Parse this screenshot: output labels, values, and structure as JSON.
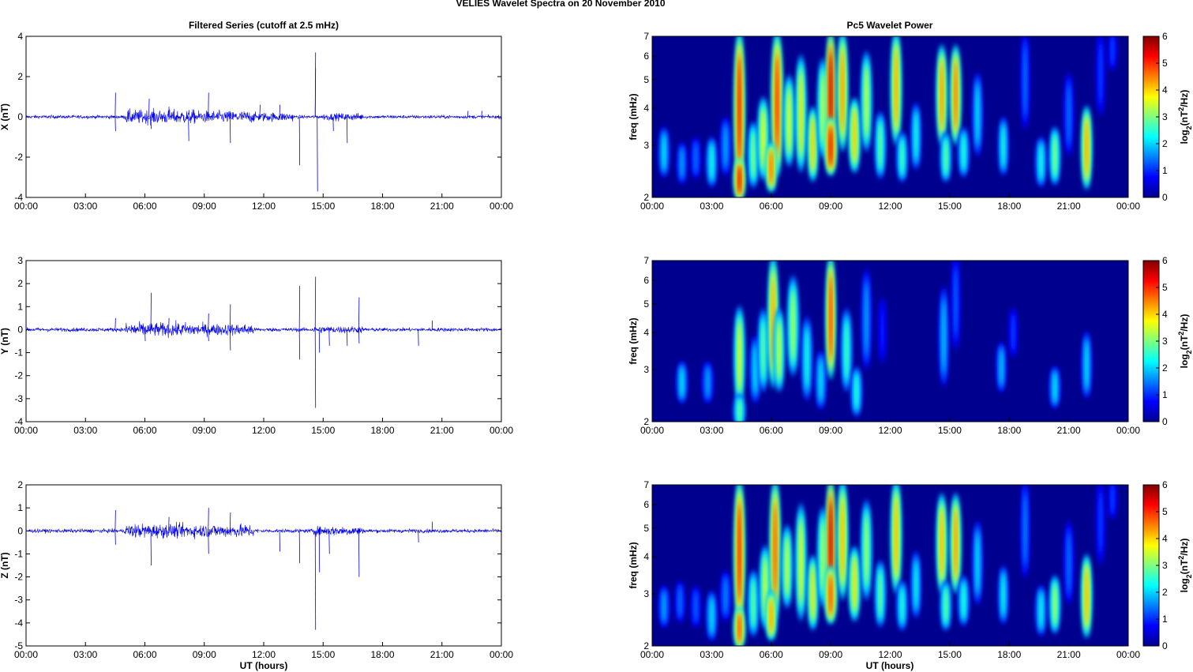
{
  "figure": {
    "suptitle": "VELIES Wavelet Spectra on 20 November  2010",
    "left_title": "Filtered Series (cutoff at 2.5 mHz)",
    "right_title": "Pc5 Wavelet Power",
    "xlabel": "UT (hours)",
    "xticks": [
      "00:00",
      "03:00",
      "06:00",
      "09:00",
      "12:00",
      "15:00",
      "18:00",
      "21:00",
      "00:00"
    ],
    "colors": {
      "trace": "#0000ee",
      "background": "#00008f"
    }
  },
  "chart_data": [
    {
      "type": "line",
      "component": "X",
      "ylabel": "X (nT)",
      "ylim": [
        -4,
        4
      ],
      "yticks": [
        "-4",
        "-2",
        "0",
        "2",
        "4"
      ],
      "x_range_hours": [
        0,
        24
      ],
      "baseline_amplitude": 0.08,
      "spikes": [
        [
          4.5,
          1.2
        ],
        [
          4.5,
          -0.7
        ],
        [
          6.2,
          0.9
        ],
        [
          6.3,
          -0.6
        ],
        [
          7.2,
          0.5
        ],
        [
          8.2,
          -1.2
        ],
        [
          9.2,
          1.2
        ],
        [
          10.3,
          -1.3
        ],
        [
          11.8,
          0.6
        ],
        [
          12.8,
          0.6
        ],
        [
          13.8,
          -2.4
        ],
        [
          14.6,
          3.2
        ],
        [
          14.6,
          2.4
        ],
        [
          14.7,
          -3.7
        ],
        [
          15.5,
          -0.7
        ],
        [
          16.2,
          -1.3
        ],
        [
          22.3,
          0.3
        ],
        [
          23.0,
          0.3
        ]
      ],
      "active_intervals": [
        [
          5.0,
          8.5,
          0.35
        ],
        [
          8.5,
          11.5,
          0.3
        ],
        [
          11.5,
          13.5,
          0.22
        ],
        [
          15,
          17,
          0.18
        ]
      ]
    },
    {
      "type": "line",
      "component": "Y",
      "ylabel": "Y (nT)",
      "ylim": [
        -4,
        3
      ],
      "yticks": [
        "-4",
        "-3",
        "-2",
        "-1",
        "0",
        "1",
        "2",
        "3"
      ],
      "x_range_hours": [
        0,
        24
      ],
      "baseline_amplitude": 0.08,
      "spikes": [
        [
          4.5,
          0.5
        ],
        [
          6.3,
          1.6
        ],
        [
          6.0,
          -0.5
        ],
        [
          7.2,
          0.5
        ],
        [
          9.2,
          0.7
        ],
        [
          9.2,
          -0.5
        ],
        [
          10.3,
          1.1
        ],
        [
          10.3,
          -0.9
        ],
        [
          13.8,
          1.9
        ],
        [
          13.8,
          -1.3
        ],
        [
          14.6,
          2.3
        ],
        [
          14.6,
          -3.4
        ],
        [
          14.8,
          -1.0
        ],
        [
          15.3,
          -0.7
        ],
        [
          16.2,
          -0.7
        ],
        [
          16.8,
          1.4
        ],
        [
          16.8,
          -0.6
        ],
        [
          19.8,
          -0.7
        ],
        [
          20.5,
          0.4
        ]
      ],
      "active_intervals": [
        [
          5.0,
          8.5,
          0.3
        ],
        [
          8.5,
          11.5,
          0.25
        ],
        [
          14.5,
          17,
          0.15
        ]
      ]
    },
    {
      "type": "line",
      "component": "Z",
      "ylabel": "Z (nT)",
      "ylim": [
        -5,
        2
      ],
      "yticks": [
        "-5",
        "-4",
        "-3",
        "-2",
        "-1",
        "0",
        "1",
        "2"
      ],
      "x_range_hours": [
        0,
        24
      ],
      "baseline_amplitude": 0.08,
      "spikes": [
        [
          4.5,
          0.9
        ],
        [
          4.5,
          -0.6
        ],
        [
          6.3,
          -1.5
        ],
        [
          7.2,
          0.6
        ],
        [
          9.2,
          1.0
        ],
        [
          9.2,
          -1.0
        ],
        [
          10.3,
          0.8
        ],
        [
          12.8,
          -0.9
        ],
        [
          13.8,
          -1.4
        ],
        [
          14.6,
          -4.3
        ],
        [
          14.8,
          -1.8
        ],
        [
          15.3,
          -1.0
        ],
        [
          16.8,
          -2.0
        ],
        [
          20.5,
          0.4
        ],
        [
          19.8,
          -0.5
        ]
      ],
      "active_intervals": [
        [
          5.0,
          8.5,
          0.3
        ],
        [
          8.5,
          11.5,
          0.28
        ],
        [
          14.5,
          17,
          0.2
        ]
      ]
    },
    {
      "type": "heatmap",
      "component": "X",
      "ylabel": "freq (mHz)",
      "y_scale": "log",
      "ylim": [
        2,
        7
      ],
      "yticks": [
        "2",
        "3",
        "4",
        "5",
        "6",
        "7"
      ],
      "colorbar": {
        "label": "log2(nT^2/Hz)",
        "range": [
          0,
          6
        ],
        "ticks": [
          "0",
          "1",
          "2",
          "3",
          "4",
          "5",
          "6"
        ]
      },
      "blobs": [
        [
          0.6,
          2.7,
          0.3,
          0.6,
          2.2
        ],
        [
          1.5,
          2.5,
          0.25,
          0.5,
          1.8
        ],
        [
          2.2,
          2.6,
          0.25,
          0.5,
          1.5
        ],
        [
          3.0,
          2.5,
          0.3,
          0.6,
          2.5
        ],
        [
          3.7,
          2.8,
          0.3,
          0.7,
          1.8
        ],
        [
          4.4,
          3.5,
          0.3,
          2.0,
          5.5
        ],
        [
          4.4,
          2.2,
          0.35,
          0.5,
          5.5
        ],
        [
          5.1,
          2.6,
          0.3,
          0.8,
          3.2
        ],
        [
          5.6,
          2.9,
          0.35,
          1.0,
          3.8
        ],
        [
          6.3,
          4.0,
          0.35,
          2.2,
          5.2
        ],
        [
          6.0,
          2.4,
          0.35,
          0.6,
          4.8
        ],
        [
          6.9,
          3.3,
          0.3,
          1.1,
          3.8
        ],
        [
          7.5,
          3.4,
          0.3,
          1.4,
          4.0
        ],
        [
          8.1,
          2.8,
          0.3,
          0.9,
          4.2
        ],
        [
          8.6,
          3.6,
          0.3,
          1.2,
          3.6
        ],
        [
          9.0,
          4.8,
          0.25,
          2.5,
          6.0
        ],
        [
          9.0,
          2.8,
          0.4,
          0.7,
          5.5
        ],
        [
          9.6,
          4.2,
          0.3,
          1.6,
          4.6
        ],
        [
          10.2,
          3.0,
          0.35,
          0.9,
          4.2
        ],
        [
          10.8,
          3.8,
          0.3,
          1.2,
          3.6
        ],
        [
          11.5,
          2.8,
          0.3,
          0.8,
          3.0
        ],
        [
          12.3,
          4.2,
          0.3,
          1.4,
          4.5
        ],
        [
          12.6,
          2.6,
          0.3,
          0.6,
          2.8
        ],
        [
          13.3,
          3.0,
          0.25,
          0.8,
          2.5
        ],
        [
          14.6,
          4.0,
          0.3,
          1.2,
          4.6
        ],
        [
          14.8,
          2.6,
          0.3,
          0.6,
          3.0
        ],
        [
          15.3,
          4.0,
          0.3,
          1.2,
          4.8
        ],
        [
          15.7,
          2.7,
          0.3,
          0.6,
          2.6
        ],
        [
          16.4,
          3.5,
          0.25,
          1.0,
          2.2
        ],
        [
          17.7,
          2.8,
          0.25,
          0.7,
          2.5
        ],
        [
          18.8,
          4.5,
          0.2,
          1.2,
          1.5
        ],
        [
          19.6,
          2.5,
          0.3,
          0.6,
          2.5
        ],
        [
          20.3,
          2.6,
          0.3,
          0.7,
          3.2
        ],
        [
          21.0,
          3.5,
          0.25,
          1.0,
          1.5
        ],
        [
          21.9,
          2.7,
          0.3,
          1.0,
          4.5
        ],
        [
          22.6,
          5.0,
          0.2,
          1.2,
          1.2
        ],
        [
          23.2,
          6.5,
          0.2,
          0.8,
          1.2
        ]
      ]
    },
    {
      "type": "heatmap",
      "component": "Y",
      "ylabel": "freq (mHz)",
      "y_scale": "log",
      "ylim": [
        2,
        7
      ],
      "yticks": [
        "2",
        "3",
        "4",
        "5",
        "6",
        "7"
      ],
      "colorbar": {
        "label": "log2(nT^2/Hz)",
        "range": [
          0,
          6
        ],
        "ticks": [
          "0",
          "1",
          "2",
          "3",
          "4",
          "5",
          "6"
        ]
      },
      "blobs": [
        [
          1.5,
          2.6,
          0.3,
          0.5,
          2.2
        ],
        [
          2.8,
          2.6,
          0.3,
          0.5,
          1.8
        ],
        [
          4.4,
          3.0,
          0.3,
          1.2,
          3.8
        ],
        [
          4.4,
          2.1,
          0.35,
          0.4,
          3.0
        ],
        [
          5.2,
          2.8,
          0.3,
          0.8,
          2.2
        ],
        [
          5.6,
          3.2,
          0.3,
          1.0,
          3.0
        ],
        [
          6.1,
          4.2,
          0.3,
          2.0,
          4.5
        ],
        [
          6.4,
          3.2,
          0.3,
          1.0,
          3.6
        ],
        [
          7.1,
          3.8,
          0.35,
          1.2,
          3.4
        ],
        [
          7.8,
          3.0,
          0.3,
          1.0,
          2.5
        ],
        [
          8.5,
          2.6,
          0.3,
          0.7,
          2.2
        ],
        [
          9.0,
          4.5,
          0.25,
          2.0,
          5.2
        ],
        [
          9.8,
          3.2,
          0.3,
          1.0,
          2.8
        ],
        [
          10.3,
          2.4,
          0.3,
          0.6,
          2.6
        ],
        [
          10.8,
          4.0,
          0.25,
          1.2,
          1.8
        ],
        [
          11.6,
          3.8,
          0.2,
          0.8,
          1.0
        ],
        [
          14.7,
          3.5,
          0.25,
          1.2,
          2.0
        ],
        [
          15.3,
          5.0,
          0.2,
          1.5,
          1.4
        ],
        [
          17.6,
          2.9,
          0.25,
          0.6,
          2.0
        ],
        [
          18.2,
          3.8,
          0.2,
          0.6,
          1.2
        ],
        [
          20.3,
          2.5,
          0.3,
          0.5,
          2.2
        ],
        [
          21.9,
          2.9,
          0.25,
          0.8,
          2.2
        ]
      ]
    },
    {
      "type": "heatmap",
      "component": "Z",
      "ylabel": "freq (mHz)",
      "y_scale": "log",
      "ylim": [
        2,
        7
      ],
      "yticks": [
        "2",
        "3",
        "4",
        "5",
        "6",
        "7"
      ],
      "colorbar": {
        "label": "log2(nT^2/Hz)",
        "range": [
          0,
          6
        ],
        "ticks": [
          "0",
          "1",
          "2",
          "3",
          "4",
          "5",
          "6"
        ]
      },
      "blobs": [
        [
          0.6,
          2.6,
          0.3,
          0.5,
          1.8
        ],
        [
          1.4,
          2.7,
          0.25,
          0.5,
          1.5
        ],
        [
          2.2,
          2.6,
          0.25,
          0.5,
          1.4
        ],
        [
          3.0,
          2.4,
          0.3,
          0.6,
          2.2
        ],
        [
          3.7,
          2.8,
          0.3,
          0.6,
          1.6
        ],
        [
          4.4,
          3.6,
          0.3,
          1.8,
          5.4
        ],
        [
          4.4,
          2.2,
          0.35,
          0.5,
          5.0
        ],
        [
          5.1,
          2.6,
          0.3,
          0.8,
          3.0
        ],
        [
          5.7,
          2.9,
          0.35,
          1.0,
          3.6
        ],
        [
          6.2,
          4.2,
          0.3,
          2.2,
          5.0
        ],
        [
          6.0,
          2.4,
          0.35,
          0.6,
          4.5
        ],
        [
          6.8,
          3.4,
          0.3,
          1.0,
          3.6
        ],
        [
          7.5,
          3.4,
          0.3,
          1.4,
          3.8
        ],
        [
          8.1,
          2.8,
          0.3,
          0.9,
          4.0
        ],
        [
          8.6,
          3.6,
          0.3,
          1.2,
          3.5
        ],
        [
          9.0,
          4.8,
          0.25,
          2.5,
          6.0
        ],
        [
          9.0,
          2.8,
          0.4,
          0.7,
          5.0
        ],
        [
          9.6,
          4.2,
          0.3,
          1.6,
          4.4
        ],
        [
          10.2,
          3.0,
          0.35,
          0.9,
          4.0
        ],
        [
          10.8,
          3.8,
          0.3,
          1.2,
          3.4
        ],
        [
          11.5,
          2.8,
          0.3,
          0.8,
          3.0
        ],
        [
          12.3,
          4.2,
          0.3,
          1.4,
          4.4
        ],
        [
          12.6,
          2.6,
          0.3,
          0.6,
          2.6
        ],
        [
          13.3,
          3.0,
          0.25,
          0.8,
          2.4
        ],
        [
          14.6,
          4.0,
          0.3,
          1.2,
          4.4
        ],
        [
          14.8,
          2.6,
          0.3,
          0.6,
          3.0
        ],
        [
          15.3,
          4.0,
          0.3,
          1.2,
          4.6
        ],
        [
          15.7,
          2.7,
          0.3,
          0.6,
          2.6
        ],
        [
          16.4,
          3.5,
          0.25,
          1.0,
          2.2
        ],
        [
          17.7,
          2.8,
          0.25,
          0.7,
          2.4
        ],
        [
          18.8,
          4.5,
          0.2,
          1.2,
          1.6
        ],
        [
          19.6,
          2.5,
          0.3,
          0.6,
          2.4
        ],
        [
          20.3,
          2.6,
          0.3,
          0.7,
          3.4
        ],
        [
          21.0,
          3.5,
          0.25,
          1.0,
          1.5
        ],
        [
          21.9,
          2.7,
          0.3,
          1.0,
          4.4
        ],
        [
          22.6,
          5.0,
          0.2,
          1.2,
          1.2
        ],
        [
          23.2,
          6.5,
          0.2,
          0.8,
          1.2
        ]
      ]
    }
  ]
}
